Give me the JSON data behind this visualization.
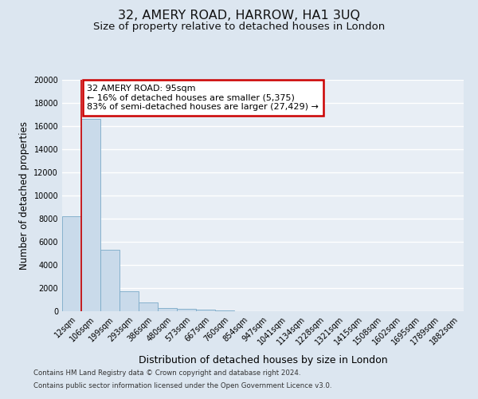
{
  "title": "32, AMERY ROAD, HARROW, HA1 3UQ",
  "subtitle": "Size of property relative to detached houses in London",
  "xlabel": "Distribution of detached houses by size in London",
  "ylabel": "Number of detached properties",
  "bar_labels": [
    "12sqm",
    "106sqm",
    "199sqm",
    "293sqm",
    "386sqm",
    "480sqm",
    "573sqm",
    "667sqm",
    "760sqm",
    "854sqm",
    "947sqm",
    "1041sqm",
    "1134sqm",
    "1228sqm",
    "1321sqm",
    "1415sqm",
    "1508sqm",
    "1602sqm",
    "1695sqm",
    "1789sqm",
    "1882sqm"
  ],
  "bar_heights": [
    8200,
    16600,
    5300,
    1750,
    750,
    270,
    200,
    130,
    90,
    0,
    0,
    0,
    0,
    0,
    0,
    0,
    0,
    0,
    0,
    0,
    0
  ],
  "bar_color": "#c9daea",
  "bar_edge_color": "#7aaac8",
  "red_line_x": 1.0,
  "annotation_text": "32 AMERY ROAD: 95sqm\n← 16% of detached houses are smaller (5,375)\n83% of semi-detached houses are larger (27,429) →",
  "annotation_box_color": "#ffffff",
  "annotation_box_edge": "#cc0000",
  "ylim": [
    0,
    20000
  ],
  "yticks": [
    0,
    2000,
    4000,
    6000,
    8000,
    10000,
    12000,
    14000,
    16000,
    18000,
    20000
  ],
  "bg_color": "#dce6f0",
  "plot_bg_color": "#e8eef5",
  "grid_color": "#ffffff",
  "footnote1": "Contains HM Land Registry data © Crown copyright and database right 2024.",
  "footnote2": "Contains public sector information licensed under the Open Government Licence v3.0.",
  "title_fontsize": 11.5,
  "subtitle_fontsize": 9.5,
  "ylabel_fontsize": 8.5,
  "xlabel_fontsize": 9,
  "tick_fontsize": 7,
  "annotation_fontsize": 8,
  "red_line_color": "#cc0000",
  "footnote_fontsize": 6.2
}
